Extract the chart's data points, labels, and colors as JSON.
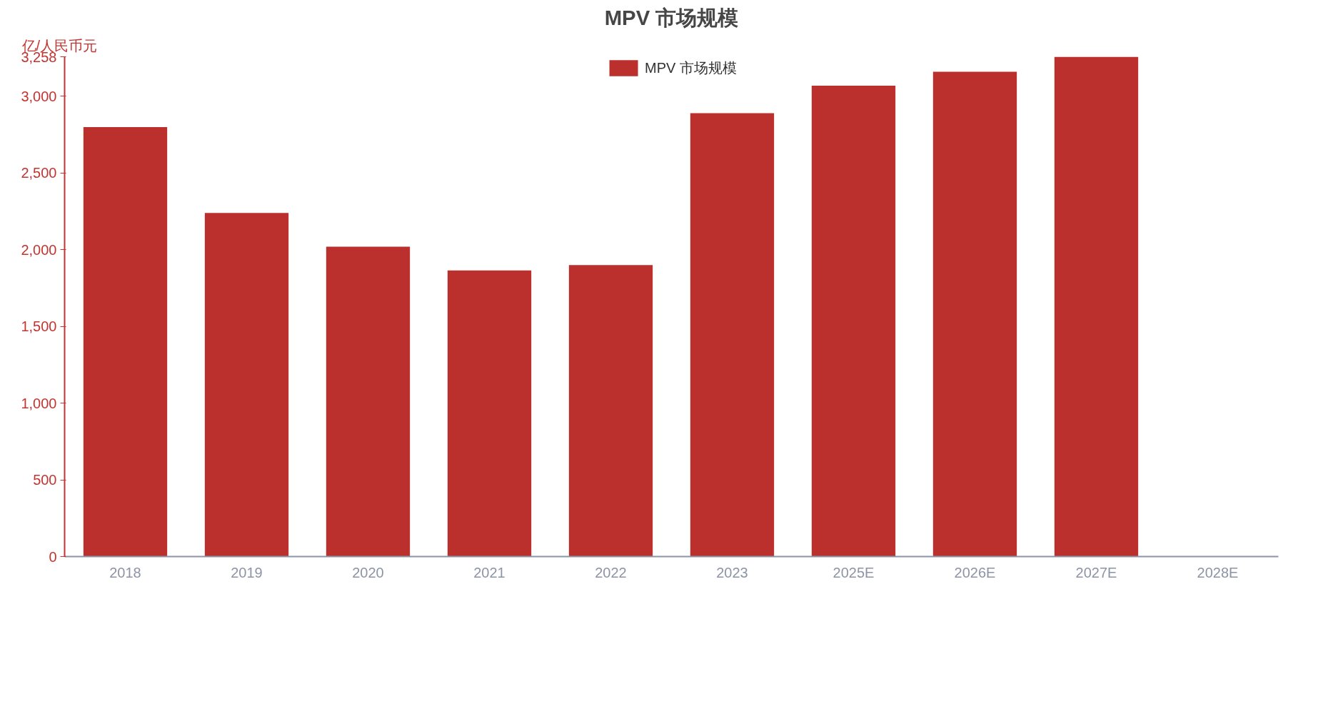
{
  "chart_data": {
    "type": "bar",
    "title": "MPV 市场规模",
    "ylabel": "亿/人民币元",
    "categories": [
      "2018",
      "2019",
      "2020",
      "2021",
      "2022",
      "2023",
      "2025E",
      "2026E",
      "2027E",
      "2028E"
    ],
    "series": [
      {
        "name": "MPV 市场规模",
        "color": "#bb302c",
        "values": [
          2800,
          2240,
          2020,
          1865,
          1900,
          2890,
          3070,
          3160,
          3258,
          null
        ]
      }
    ],
    "ylim": [
      0,
      3258
    ],
    "yticks": [
      0,
      500,
      {
        "value": 1000,
        "label": "1,000"
      },
      {
        "value": 1500,
        "label": "1,500"
      },
      {
        "value": 2000,
        "label": "2,000"
      },
      {
        "value": 2500,
        "label": "2,500"
      },
      {
        "value": 3000,
        "label": "3,000"
      },
      {
        "value": 3258,
        "label": "3,258"
      }
    ],
    "grid": false,
    "legend": "top"
  }
}
